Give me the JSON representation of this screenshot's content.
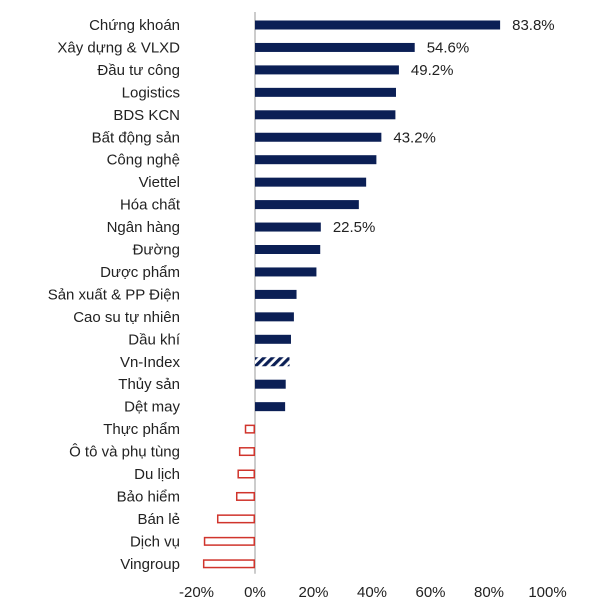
{
  "chart_data": {
    "type": "bar",
    "orientation": "horizontal",
    "categories": [
      "Chứng khoán",
      "Xây dựng & VLXD",
      "Đầu tư công",
      "Logistics",
      "BDS KCN",
      "Bất động sản",
      "Công nghệ",
      "Viettel",
      "Hóa chất",
      "Ngân hàng",
      "Đường",
      "Dược phẩm",
      "Sản xuất & PP Điện",
      "Cao su tự nhiên",
      "Dầu khí",
      "Vn-Index",
      "Thủy sản",
      "Dệt may",
      "Thực phẩm",
      "Ô tô và phụ tùng",
      "Du lịch",
      "Bảo hiểm",
      "Bán lẻ",
      "Dịch vụ",
      "Vingroup"
    ],
    "values": [
      83.8,
      54.6,
      49.2,
      48.2,
      48.0,
      43.2,
      41.5,
      38.0,
      35.5,
      22.5,
      22.3,
      21.0,
      14.2,
      13.3,
      12.3,
      11.8,
      10.5,
      10.3,
      -3.5,
      -5.5,
      -6.0,
      -6.5,
      -13.0,
      -17.5,
      -17.8
    ],
    "data_labels": {
      "0": "83.8%",
      "1": "54.6%",
      "2": "49.2%",
      "5": "43.2%",
      "9": "22.5%"
    },
    "highlight_category": "Vn-Index",
    "xlim": [
      -20,
      100
    ],
    "xticks": [
      "-20%",
      "0%",
      "20%",
      "40%",
      "60%",
      "80%",
      "100%"
    ],
    "grid": false,
    "legend": "none",
    "colors": {
      "positive": "#0b1f55",
      "negative_outline": "#d0342c",
      "axis": "#9a9a9a"
    }
  }
}
